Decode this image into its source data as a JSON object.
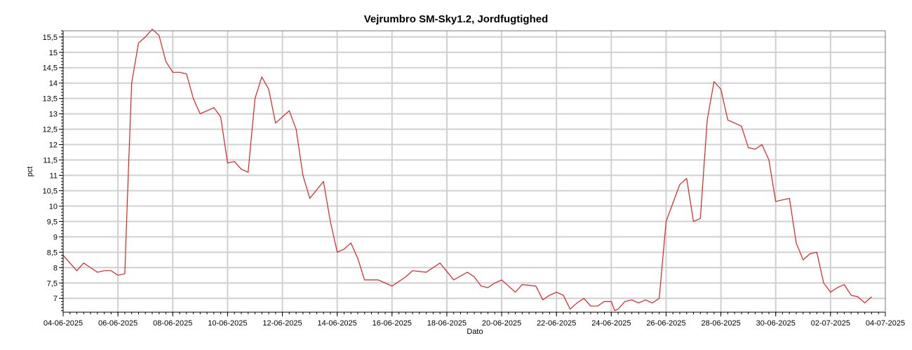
{
  "chart_data": {
    "type": "line",
    "title": "Vejrumbro SM-Sky1.2, Jordfugtighed",
    "xlabel": "Dato",
    "ylabel": "pct",
    "xlim": [
      "2025-06-04",
      "2025-07-04"
    ],
    "ylim": [
      6.55,
      15.7
    ],
    "grid": true,
    "x_ticks": [
      "04-06-2025",
      "06-06-2025",
      "08-06-2025",
      "10-06-2025",
      "12-06-2025",
      "14-06-2025",
      "16-06-2025",
      "18-06-2025",
      "20-06-2025",
      "22-06-2025",
      "24-06-2025",
      "26-06-2025",
      "28-06-2025",
      "30-06-2025",
      "02-07-2025",
      "04-07-2025"
    ],
    "y_ticks": [
      "7",
      "7,5",
      "8",
      "8,5",
      "9",
      "9,5",
      "10",
      "10,5",
      "11",
      "11,5",
      "12",
      "12,5",
      "13",
      "13,5",
      "14",
      "14,5",
      "15",
      "15,5"
    ],
    "series": [
      {
        "color": "#dd2222",
        "points": [
          [
            "2025-06-04 00:00",
            8.4
          ],
          [
            "2025-06-04 12:00",
            7.9
          ],
          [
            "2025-06-04 18:00",
            8.15
          ],
          [
            "2025-06-05 06:00",
            7.85
          ],
          [
            "2025-06-05 12:00",
            7.9
          ],
          [
            "2025-06-05 18:00",
            7.9
          ],
          [
            "2025-06-06 00:00",
            7.75
          ],
          [
            "2025-06-06 06:00",
            7.8
          ],
          [
            "2025-06-06 09:00",
            11.0
          ],
          [
            "2025-06-06 12:00",
            14.0
          ],
          [
            "2025-06-06 18:00",
            15.3
          ],
          [
            "2025-06-07 00:00",
            15.5
          ],
          [
            "2025-06-07 06:00",
            15.75
          ],
          [
            "2025-06-07 12:00",
            15.55
          ],
          [
            "2025-06-07 18:00",
            14.7
          ],
          [
            "2025-06-08 00:00",
            14.35
          ],
          [
            "2025-06-08 06:00",
            14.35
          ],
          [
            "2025-06-08 12:00",
            14.3
          ],
          [
            "2025-06-08 18:00",
            13.5
          ],
          [
            "2025-06-09 00:00",
            13.0
          ],
          [
            "2025-06-09 12:00",
            13.2
          ],
          [
            "2025-06-09 18:00",
            12.9
          ],
          [
            "2025-06-10 00:00",
            11.4
          ],
          [
            "2025-06-10 06:00",
            11.45
          ],
          [
            "2025-06-10 12:00",
            11.2
          ],
          [
            "2025-06-10 18:00",
            11.1
          ],
          [
            "2025-06-11 00:00",
            13.5
          ],
          [
            "2025-06-11 06:00",
            14.2
          ],
          [
            "2025-06-11 12:00",
            13.8
          ],
          [
            "2025-06-11 18:00",
            12.7
          ],
          [
            "2025-06-12 06:00",
            13.1
          ],
          [
            "2025-06-12 12:00",
            12.5
          ],
          [
            "2025-06-12 18:00",
            11.0
          ],
          [
            "2025-06-13 00:00",
            10.25
          ],
          [
            "2025-06-13 12:00",
            10.8
          ],
          [
            "2025-06-13 18:00",
            9.5
          ],
          [
            "2025-06-14 00:00",
            8.5
          ],
          [
            "2025-06-14 06:00",
            8.6
          ],
          [
            "2025-06-14 12:00",
            8.8
          ],
          [
            "2025-06-14 18:00",
            8.3
          ],
          [
            "2025-06-15 00:00",
            7.6
          ],
          [
            "2025-06-15 12:00",
            7.6
          ],
          [
            "2025-06-15 18:00",
            7.5
          ],
          [
            "2025-06-16 00:00",
            7.4
          ],
          [
            "2025-06-16 12:00",
            7.7
          ],
          [
            "2025-06-16 18:00",
            7.9
          ],
          [
            "2025-06-17 06:00",
            7.85
          ],
          [
            "2025-06-17 18:00",
            8.15
          ],
          [
            "2025-06-18 06:00",
            7.6
          ],
          [
            "2025-06-18 18:00",
            7.85
          ],
          [
            "2025-06-19 00:00",
            7.7
          ],
          [
            "2025-06-19 06:00",
            7.4
          ],
          [
            "2025-06-19 12:00",
            7.35
          ],
          [
            "2025-06-19 18:00",
            7.5
          ],
          [
            "2025-06-20 00:00",
            7.6
          ],
          [
            "2025-06-20 12:00",
            7.2
          ],
          [
            "2025-06-20 18:00",
            7.45
          ],
          [
            "2025-06-21 06:00",
            7.4
          ],
          [
            "2025-06-21 12:00",
            6.95
          ],
          [
            "2025-06-21 18:00",
            7.1
          ],
          [
            "2025-06-22 00:00",
            7.2
          ],
          [
            "2025-06-22 06:00",
            7.1
          ],
          [
            "2025-06-22 12:00",
            6.65
          ],
          [
            "2025-06-22 18:00",
            6.85
          ],
          [
            "2025-06-23 00:00",
            7.0
          ],
          [
            "2025-06-23 06:00",
            6.75
          ],
          [
            "2025-06-23 12:00",
            6.75
          ],
          [
            "2025-06-23 18:00",
            6.9
          ],
          [
            "2025-06-24 00:00",
            6.9
          ],
          [
            "2025-06-24 03:00",
            6.6
          ],
          [
            "2025-06-24 06:00",
            6.65
          ],
          [
            "2025-06-24 12:00",
            6.9
          ],
          [
            "2025-06-24 18:00",
            6.95
          ],
          [
            "2025-06-25 00:00",
            6.85
          ],
          [
            "2025-06-25 06:00",
            6.95
          ],
          [
            "2025-06-25 12:00",
            6.85
          ],
          [
            "2025-06-25 18:00",
            7.0
          ],
          [
            "2025-06-26 00:00",
            9.5
          ],
          [
            "2025-06-26 06:00",
            10.1
          ],
          [
            "2025-06-26 12:00",
            10.7
          ],
          [
            "2025-06-26 18:00",
            10.9
          ],
          [
            "2025-06-27 00:00",
            9.5
          ],
          [
            "2025-06-27 06:00",
            9.6
          ],
          [
            "2025-06-27 12:00",
            12.8
          ],
          [
            "2025-06-27 18:00",
            14.05
          ],
          [
            "2025-06-28 00:00",
            13.8
          ],
          [
            "2025-06-28 06:00",
            12.8
          ],
          [
            "2025-06-28 12:00",
            12.7
          ],
          [
            "2025-06-28 18:00",
            12.6
          ],
          [
            "2025-06-29 00:00",
            11.9
          ],
          [
            "2025-06-29 06:00",
            11.85
          ],
          [
            "2025-06-29 12:00",
            12.0
          ],
          [
            "2025-06-29 18:00",
            11.5
          ],
          [
            "2025-06-30 00:00",
            10.15
          ],
          [
            "2025-06-30 06:00",
            10.2
          ],
          [
            "2025-06-30 12:00",
            10.25
          ],
          [
            "2025-06-30 18:00",
            8.8
          ],
          [
            "2025-07-01 00:00",
            8.25
          ],
          [
            "2025-07-01 06:00",
            8.45
          ],
          [
            "2025-07-01 12:00",
            8.5
          ],
          [
            "2025-07-01 18:00",
            7.5
          ],
          [
            "2025-07-02 00:00",
            7.2
          ],
          [
            "2025-07-02 06:00",
            7.35
          ],
          [
            "2025-07-02 12:00",
            7.45
          ],
          [
            "2025-07-02 18:00",
            7.1
          ],
          [
            "2025-07-03 00:00",
            7.05
          ],
          [
            "2025-07-03 06:00",
            6.85
          ],
          [
            "2025-07-03 12:00",
            7.05
          ]
        ]
      }
    ]
  }
}
